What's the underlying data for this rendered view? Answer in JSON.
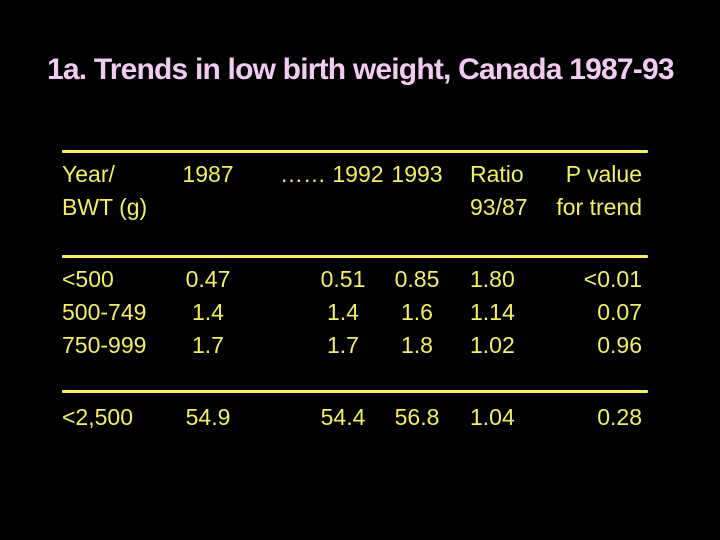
{
  "slide": {
    "title": "1a. Trends in low birth weight, Canada 1987-93",
    "background_color": "#000000",
    "title_color": "#F2CBF2",
    "table_color": "#F0F062"
  },
  "table": {
    "header": {
      "row_label_line1": "Year/",
      "row_label_line2": "BWT (g)",
      "col_1987": "1987",
      "col_1992": "…… 1992",
      "col_1993": "1993",
      "ratio_line1": "Ratio",
      "ratio_line2": "93/87",
      "p_line1": "P value",
      "p_line2": "for trend"
    },
    "rows": [
      {
        "bwt": "<500",
        "v1987": "0.47",
        "v1992": "0.51",
        "v1993": "0.85",
        "ratio": "1.80",
        "p": "<0.01"
      },
      {
        "bwt": "500-749",
        "v1987": "1.4",
        "v1992": "1.4",
        "v1993": "1.6",
        "ratio": "1.14",
        "p": "0.07"
      },
      {
        "bwt": "750-999",
        "v1987": "1.7",
        "v1992": "1.7",
        "v1993": "1.8",
        "ratio": "1.02",
        "p": "0.96"
      }
    ],
    "total_row": {
      "bwt": "<2,500",
      "v1987": "54.9",
      "v1992": "54.4",
      "v1993": "56.8",
      "ratio": "1.04",
      "p": "0.28"
    }
  }
}
